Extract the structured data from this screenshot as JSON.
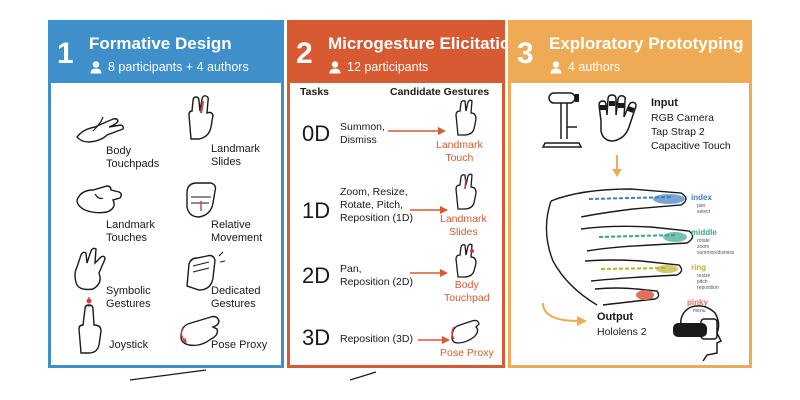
{
  "panels": [
    {
      "number": "1",
      "title": "Formative Design",
      "subtitle": "8 participants + 4 authors",
      "color": "#3f8fcb",
      "items": [
        "Body\nTouchpads",
        "Landmark\nSlides",
        "Landmark\nTouches",
        "Relative\nMovement",
        "Symbolic\nGestures",
        "Dedicated\nGestures",
        "Joystick",
        "Pose Proxy"
      ]
    },
    {
      "number": "2",
      "title": "Microgesture Elicitation",
      "subtitle": "12 participants",
      "color": "#d75a33",
      "col_tasks": "Tasks",
      "col_gestures": "Candidate Gestures",
      "rows": [
        {
          "dim": "0D",
          "task": "Summon,\nDismiss",
          "gesture": "Landmark\nTouch"
        },
        {
          "dim": "1D",
          "task": "Zoom, Resize,\nRotate, Pitch,\nReposition (1D)",
          "gesture": "Landmark\nSlides"
        },
        {
          "dim": "2D",
          "task": "Pan,\nReposition (2D)",
          "gesture": "Body\nTouchpad"
        },
        {
          "dim": "3D",
          "task": "Reposition (3D)",
          "gesture": "Pose Proxy"
        }
      ]
    },
    {
      "number": "3",
      "title": "Exploratory Prototyping",
      "subtitle": "4 authors",
      "color": "#eeaa55",
      "input_title": "Input",
      "inputs": [
        "RGB Camera",
        "Tap Strap 2",
        "Capacitive Touch"
      ],
      "fingers": [
        {
          "name": "index",
          "color": "#3f7fc0",
          "actions": [
            "pan",
            "select"
          ]
        },
        {
          "name": "middle",
          "color": "#3aa58c",
          "actions": [
            "rotate",
            "zoom",
            "summon/dismiss"
          ]
        },
        {
          "name": "ring",
          "color": "#b8b52c",
          "actions": [
            "resize",
            "pitch",
            "reposition"
          ]
        },
        {
          "name": "pinky",
          "color": "#e07060",
          "actions": [
            "menu"
          ]
        }
      ],
      "output_title": "Output",
      "output": "Hololens 2"
    }
  ]
}
